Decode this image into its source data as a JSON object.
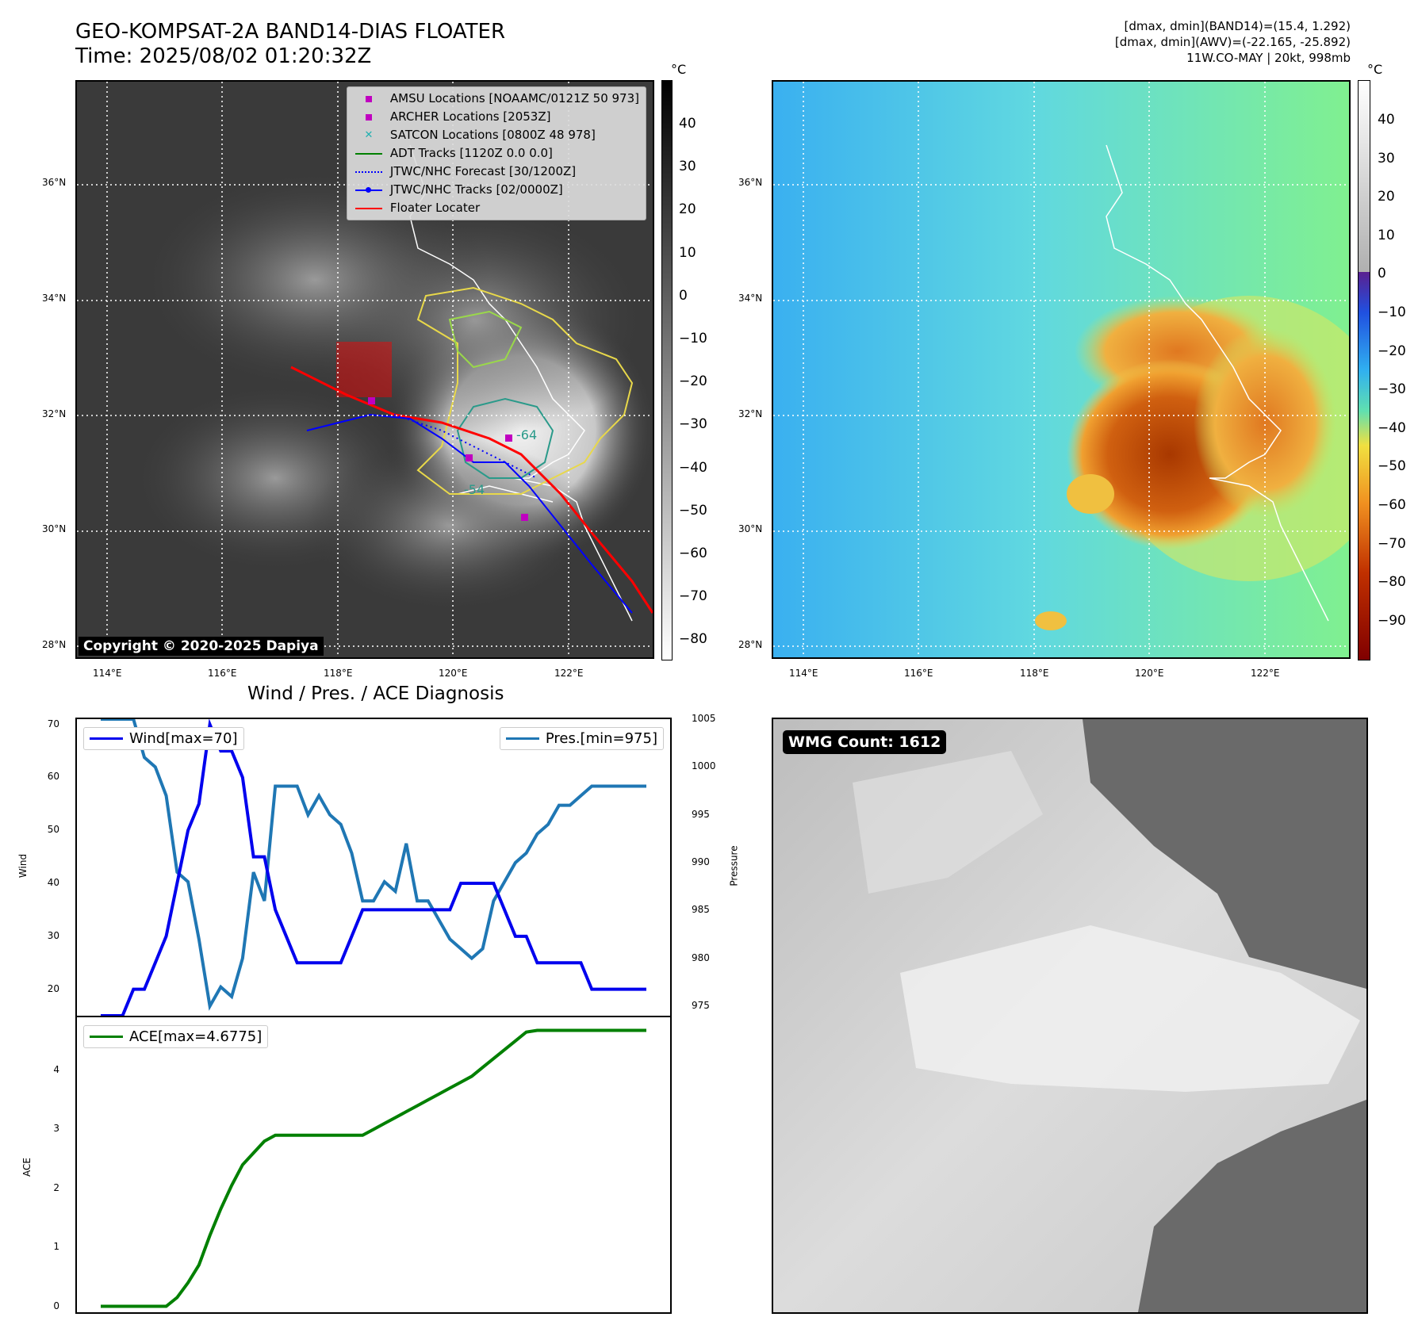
{
  "header": {
    "title": "GEO-KOMPSAT-2A BAND14-DIAS FLOATER",
    "time": "Time: 2025/08/02 01:20:32Z",
    "info": [
      "[dmax, dmin](BAND14)=(15.4, 1.292)",
      "[dmax, dmin](AWV)=(-22.165, -25.892)",
      "11W.CO-MAY | 20kt, 998mb"
    ]
  },
  "map": {
    "lat_labels": [
      "36°N",
      "34°N",
      "32°N",
      "30°N",
      "28°N"
    ],
    "lon_labels": [
      "114°E",
      "116°E",
      "118°E",
      "120°E",
      "122°E"
    ],
    "copyright": "Copyright © 2020-2025 Dapiya",
    "contour_label_1": "-64",
    "contour_label_2": "-54",
    "legend": [
      {
        "label": "AMSU Locations [NOAAMC/0121Z 50 973]",
        "color": "#c000c0",
        "icon": "square-marker"
      },
      {
        "label": "ARCHER Locations [2053Z]",
        "color": "#c000c0",
        "icon": "square-marker"
      },
      {
        "label": "SATCON Locations [0800Z 48 978]",
        "color": "#20b0b0",
        "icon": "x-marker"
      },
      {
        "label": "ADT Tracks [1120Z 0.0 0.0]",
        "color": "#008000",
        "icon": "solid-line"
      },
      {
        "label": "JTWC/NHC Forecast [30/1200Z]",
        "color": "#0000ff",
        "icon": "dotted-line"
      },
      {
        "label": "JTWC/NHC Tracks [02/0000Z]",
        "color": "#0000ff",
        "icon": "line-dot"
      },
      {
        "label": "Floater Locater",
        "color": "#ff0000",
        "icon": "solid-line"
      }
    ],
    "colorbar1": {
      "unit": "°C",
      "ticks": [
        "40",
        "30",
        "20",
        "10",
        "0",
        "−10",
        "−20",
        "−30",
        "−40",
        "−50",
        "−60",
        "−70",
        "−80"
      ]
    },
    "colorbar2": {
      "unit": "°C",
      "ticks": [
        "40",
        "30",
        "20",
        "10",
        "0",
        "−10",
        "−20",
        "−30",
        "−40",
        "−50",
        "−60",
        "−70",
        "−80",
        "−90"
      ]
    }
  },
  "diagnosis": {
    "title": "Wind / Pres. / ACE Diagnosis",
    "wind_axis_label": "Wind",
    "pres_axis_label": "Pressure",
    "ace_axis_label": "ACE",
    "wind_legend": "Wind[max=70]",
    "pres_legend": "Pres.[min=975]",
    "ace_legend": "ACE[max=4.6775]",
    "wmg_count": "WMG Count: 1612"
  },
  "colors": {
    "wind": "#0000ee",
    "pressure": "#1f77b4",
    "ace": "#008000"
  },
  "chart_data": [
    {
      "type": "line",
      "title": "Wind / Pres. / ACE Diagnosis",
      "ylabel": "Wind",
      "y2label": "Pressure",
      "ylim": [
        15,
        71
      ],
      "y2lim": [
        974,
        1005
      ],
      "x": [
        0,
        1,
        2,
        3,
        4,
        5,
        6,
        7,
        8,
        9,
        10,
        11,
        12,
        13,
        14,
        15,
        16,
        17,
        18,
        19,
        20,
        21,
        22,
        23,
        24,
        25,
        26,
        27,
        28,
        29,
        30,
        31,
        32,
        33,
        34,
        35,
        36,
        37,
        38,
        39,
        40,
        41,
        42,
        43,
        44,
        45,
        46,
        47,
        48,
        49,
        50
      ],
      "series": [
        {
          "name": "Wind[max=70]",
          "axis": "left",
          "values": [
            15,
            15,
            15,
            20,
            20,
            25,
            30,
            40,
            50,
            55,
            70,
            65,
            65,
            60,
            45,
            45,
            35,
            30,
            25,
            25,
            25,
            25,
            25,
            30,
            35,
            35,
            35,
            35,
            35,
            35,
            35,
            35,
            35,
            40,
            40,
            40,
            40,
            35,
            30,
            30,
            25,
            25,
            25,
            25,
            25,
            20,
            20,
            20,
            20,
            20,
            20
          ]
        },
        {
          "name": "Pres.[min=975]",
          "axis": "right",
          "values": [
            1005,
            1005,
            1005,
            1005,
            1001,
            1000,
            997,
            989,
            988,
            982,
            975,
            977,
            976,
            980,
            989,
            986,
            998,
            998,
            998,
            995,
            997,
            995,
            994,
            991,
            986,
            986,
            988,
            987,
            992,
            986,
            986,
            984,
            982,
            981,
            980,
            981,
            986,
            988,
            990,
            991,
            993,
            994,
            996,
            996,
            997,
            998,
            998,
            998,
            998,
            998,
            998
          ]
        }
      ]
    },
    {
      "type": "line",
      "ylabel": "ACE",
      "ylim": [
        -0.1,
        4.9
      ],
      "x": [
        0,
        1,
        2,
        3,
        4,
        5,
        6,
        7,
        8,
        9,
        10,
        11,
        12,
        13,
        14,
        15,
        16,
        17,
        18,
        19,
        20,
        21,
        22,
        23,
        24,
        25,
        26,
        27,
        28,
        29,
        30,
        31,
        32,
        33,
        34,
        35,
        36,
        37,
        38,
        39,
        40,
        41,
        42,
        43,
        44,
        45,
        46,
        47,
        48,
        49,
        50
      ],
      "series": [
        {
          "name": "ACE[max=4.6775]",
          "values": [
            0,
            0,
            0,
            0,
            0,
            0,
            0,
            0.15,
            0.4,
            0.7,
            1.2,
            1.65,
            2.05,
            2.4,
            2.6,
            2.8,
            2.9,
            2.9,
            2.9,
            2.9,
            2.9,
            2.9,
            2.9,
            2.9,
            2.9,
            3.0,
            3.1,
            3.2,
            3.3,
            3.4,
            3.5,
            3.6,
            3.7,
            3.8,
            3.9,
            4.05,
            4.2,
            4.35,
            4.5,
            4.65,
            4.6775,
            4.6775,
            4.6775,
            4.6775,
            4.6775,
            4.6775,
            4.6775,
            4.6775,
            4.6775,
            4.6775,
            4.6775
          ]
        }
      ]
    }
  ]
}
